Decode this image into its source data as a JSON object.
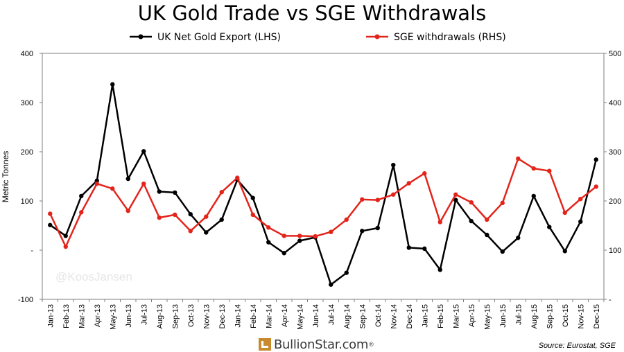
{
  "chart_data": {
    "type": "line",
    "title": "UK Gold Trade vs SGE Withdrawals",
    "ylabel": "Metric Tonnes",
    "watermark": "@KoosJansen",
    "source": "Source: Eurostat, SGE",
    "brand": "BullionStar.com",
    "brand_mark": "®",
    "categories": [
      "Jan-13",
      "Feb-13",
      "Mar-13",
      "Apr-13",
      "May-13",
      "Jun-13",
      "Jul-13",
      "Aug-13",
      "Sep-13",
      "Oct-13",
      "Nov-13",
      "Dec-13",
      "Jan-14",
      "Feb-14",
      "Mar-14",
      "Apr-14",
      "May-14",
      "Jun-14",
      "Jul-14",
      "Aug-14",
      "Sep-14",
      "Oct-14",
      "Nov-14",
      "Dec-14",
      "Jan-15",
      "Feb-15",
      "Mar-15",
      "Apr-15",
      "May-15",
      "Jun-15",
      "Jul-15",
      "Aug-15",
      "Sep-15",
      "Oct-15",
      "Nov-15",
      "Dec-15"
    ],
    "y_left": {
      "range": [
        -100,
        400
      ],
      "ticks": [
        -100,
        0,
        100,
        200,
        300,
        400
      ],
      "tick_labels": [
        "-100",
        "-",
        "100",
        "200",
        "300",
        "400"
      ]
    },
    "y_right": {
      "range": [
        0,
        500
      ],
      "ticks": [
        0,
        100,
        200,
        300,
        400,
        500
      ],
      "tick_labels": [
        "-",
        "100",
        "200",
        "300",
        "400",
        "500"
      ]
    },
    "legend_position": "top",
    "series": [
      {
        "name": "UK Net Gold Export (LHS)",
        "axis": "left",
        "color": "#000000",
        "values": [
          51,
          29,
          110,
          141,
          337,
          145,
          201,
          119,
          117,
          73,
          36,
          62,
          143,
          106,
          16,
          -6,
          19,
          26,
          -70,
          -46,
          39,
          45,
          173,
          5,
          3,
          -40,
          102,
          59,
          31,
          -3,
          25,
          110,
          47,
          -2,
          58,
          184
        ]
      },
      {
        "name": "SGE withdrawals (RHS)",
        "axis": "right",
        "color": "#e3241b",
        "values": [
          174,
          107,
          177,
          235,
          225,
          180,
          235,
          166,
          172,
          139,
          168,
          218,
          247,
          172,
          146,
          129,
          129,
          128,
          137,
          162,
          203,
          202,
          213,
          236,
          256,
          157,
          213,
          197,
          162,
          196,
          286,
          266,
          261,
          176,
          204,
          229
        ]
      }
    ]
  }
}
